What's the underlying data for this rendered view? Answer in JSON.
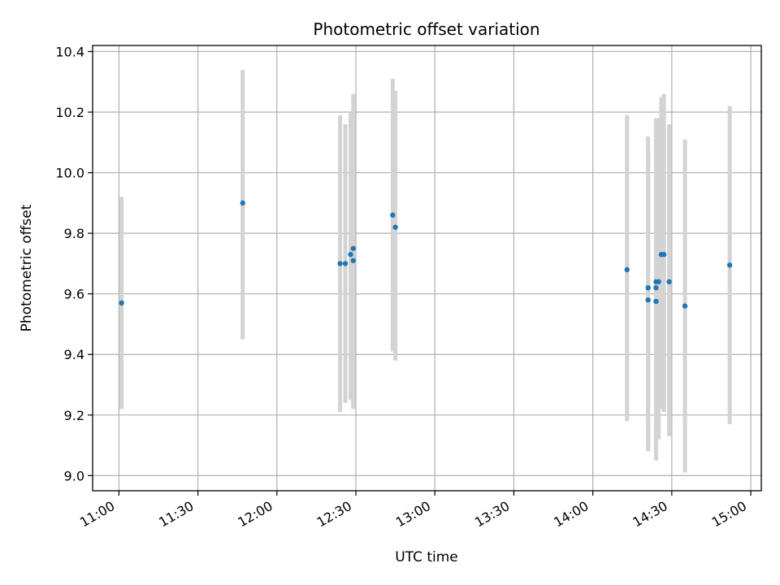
{
  "chart_data": {
    "type": "scatter",
    "title": "Photometric offset variation",
    "xlabel": "UTC time",
    "ylabel": "Photometric offset",
    "x_ticks": [
      "11:00",
      "11:30",
      "12:00",
      "12:30",
      "13:00",
      "13:30",
      "14:00",
      "14:30",
      "15:00"
    ],
    "y_ticks": [
      "9.0",
      "9.2",
      "9.4",
      "9.6",
      "9.8",
      "10.0",
      "10.2",
      "10.4"
    ],
    "xlim": [
      "10:50",
      "15:04"
    ],
    "ylim": [
      8.95,
      10.42
    ],
    "grid": true,
    "colors": {
      "point": "#1f77b4",
      "errorbar": "#d3d3d3",
      "grid": "#b0b0b0"
    },
    "points": [
      {
        "time": "11:01",
        "y": 9.57,
        "ylo": 9.22,
        "yhi": 9.92
      },
      {
        "time": "11:47",
        "y": 9.9,
        "ylo": 9.45,
        "yhi": 10.34
      },
      {
        "time": "12:24",
        "y": 9.7,
        "ylo": 9.21,
        "yhi": 10.19
      },
      {
        "time": "12:26",
        "y": 9.7,
        "ylo": 9.24,
        "yhi": 10.16
      },
      {
        "time": "12:28",
        "y": 9.73,
        "ylo": 9.25,
        "yhi": 10.2
      },
      {
        "time": "12:29",
        "y": 9.75,
        "ylo": 9.23,
        "yhi": 10.26
      },
      {
        "time": "12:29",
        "y": 9.71,
        "ylo": 9.22,
        "yhi": 10.21
      },
      {
        "time": "12:44",
        "y": 9.86,
        "ylo": 9.41,
        "yhi": 10.31
      },
      {
        "time": "12:45",
        "y": 9.82,
        "ylo": 9.38,
        "yhi": 10.27
      },
      {
        "time": "14:13",
        "y": 9.68,
        "ylo": 9.18,
        "yhi": 10.19
      },
      {
        "time": "14:21",
        "y": 9.62,
        "ylo": 9.08,
        "yhi": 10.12
      },
      {
        "time": "14:21",
        "y": 9.58,
        "ylo": 9.08,
        "yhi": 10.08
      },
      {
        "time": "14:24",
        "y": 9.575,
        "ylo": 9.05,
        "yhi": 10.1
      },
      {
        "time": "14:24",
        "y": 9.64,
        "ylo": 9.1,
        "yhi": 10.18
      },
      {
        "time": "14:24",
        "y": 9.62,
        "ylo": 9.1,
        "yhi": 10.17
      },
      {
        "time": "14:25",
        "y": 9.64,
        "ylo": 9.12,
        "yhi": 10.18
      },
      {
        "time": "14:26",
        "y": 9.73,
        "ylo": 9.22,
        "yhi": 10.25
      },
      {
        "time": "14:27",
        "y": 9.73,
        "ylo": 9.21,
        "yhi": 10.26
      },
      {
        "time": "14:29",
        "y": 9.64,
        "ylo": 9.13,
        "yhi": 10.16
      },
      {
        "time": "14:35",
        "y": 9.56,
        "ylo": 9.01,
        "yhi": 10.11
      },
      {
        "time": "14:52",
        "y": 9.695,
        "ylo": 9.17,
        "yhi": 10.22
      }
    ]
  }
}
